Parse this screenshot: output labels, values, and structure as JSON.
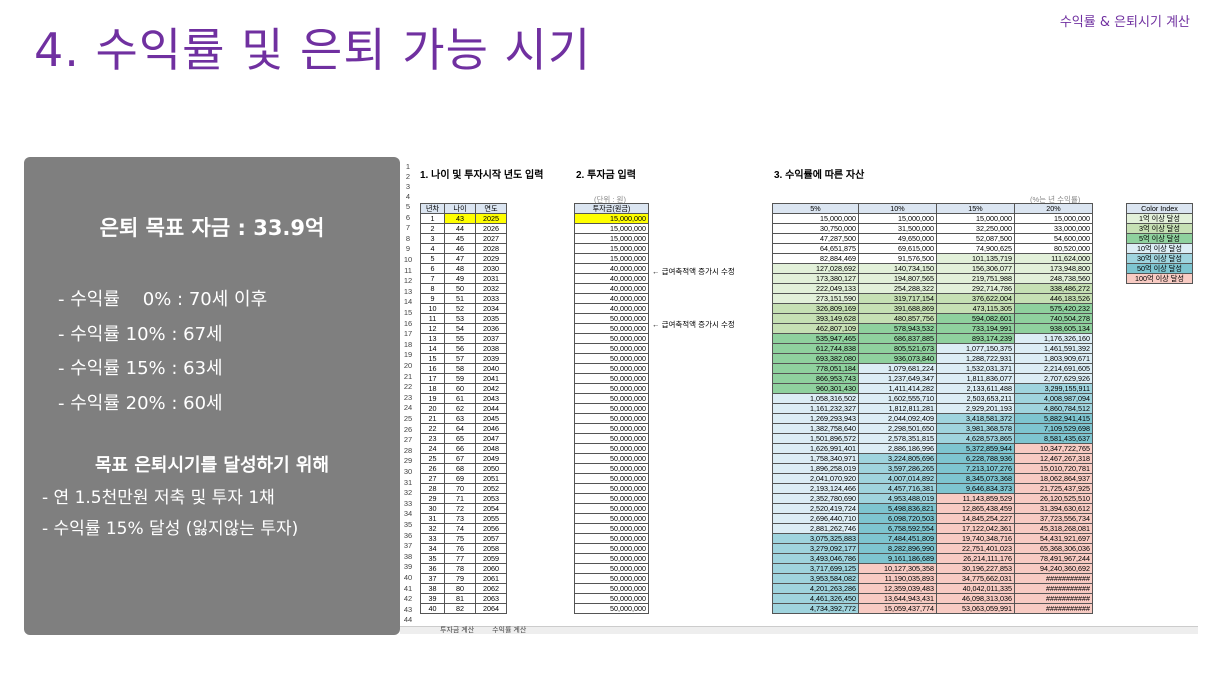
{
  "header": {
    "breadcrumb": "수익률 & 은퇴시기 계산",
    "title": "4. 수익률 및 은퇴 가능 시기"
  },
  "panel": {
    "goal": "은퇴 목표 자금 : 33.9억",
    "rates": [
      "- 수익률    0% : 70세 이후",
      "- 수익률 10% : 67세",
      "- 수익률 15% : 63세",
      "- 수익률 20% : 60세"
    ],
    "subtitle": "목표 은퇴시기를 달성하기 위해",
    "actions": [
      "- 연 1.5천만원 저축 및 투자 1채",
      "- 수익률 15% 달성 (잃지않는 투자)"
    ]
  },
  "sheet": {
    "section1": "1. 나이 및 투자시작 년도 입력",
    "section2": "2. 투자금 입력",
    "section3": "3. 수익률에 따른 자산",
    "unit_note": "(단위 : 원)",
    "rate_note": "(%는 년 수익률)",
    "annotation": "← 급여축적액 증가시 수정",
    "col_headers": [
      "년차",
      "나이",
      "연도"
    ],
    "invest_header": "투자금(원금)",
    "rate_headers": [
      "5%",
      "10%",
      "15%",
      "20%"
    ],
    "legend_title": "Color Index",
    "legend": [
      "1억 이상 달성",
      "3억 이상 달성",
      "5억 이상 달성",
      "10억 이상 달성",
      "30억 이상 달성",
      "50억 이상 달성",
      "100억 이상 달성"
    ],
    "legend_colors": [
      "#e2f0d9",
      "#c6e0b4",
      "#8fd19e",
      "#dcedf5",
      "#9fd4de",
      "#7ec5d0",
      "#f8cbc3"
    ],
    "rows": [
      [
        "1",
        "43",
        "2025",
        "15,000,000",
        "15,000,000",
        "15,000,000",
        "15,000,000",
        "15,000,000"
      ],
      [
        "2",
        "44",
        "2026",
        "15,000,000",
        "30,750,000",
        "31,500,000",
        "32,250,000",
        "33,000,000"
      ],
      [
        "3",
        "45",
        "2027",
        "15,000,000",
        "47,287,500",
        "49,650,000",
        "52,087,500",
        "54,600,000"
      ],
      [
        "4",
        "46",
        "2028",
        "15,000,000",
        "64,651,875",
        "69,615,000",
        "74,900,625",
        "80,520,000"
      ],
      [
        "5",
        "47",
        "2029",
        "15,000,000",
        "82,884,469",
        "91,576,500",
        "101,135,719",
        "111,624,000"
      ],
      [
        "6",
        "48",
        "2030",
        "40,000,000",
        "127,028,692",
        "140,734,150",
        "156,306,077",
        "173,948,800"
      ],
      [
        "7",
        "49",
        "2031",
        "40,000,000",
        "173,380,127",
        "194,807,565",
        "219,751,988",
        "248,738,560"
      ],
      [
        "8",
        "50",
        "2032",
        "40,000,000",
        "222,049,133",
        "254,288,322",
        "292,714,786",
        "338,486,272"
      ],
      [
        "9",
        "51",
        "2033",
        "40,000,000",
        "273,151,590",
        "319,717,154",
        "376,622,004",
        "446,183,526"
      ],
      [
        "10",
        "52",
        "2034",
        "40,000,000",
        "326,809,169",
        "391,688,869",
        "473,115,305",
        "575,420,232"
      ],
      [
        "11",
        "53",
        "2035",
        "50,000,000",
        "393,149,628",
        "480,857,756",
        "594,082,601",
        "740,504,278"
      ],
      [
        "12",
        "54",
        "2036",
        "50,000,000",
        "462,807,109",
        "578,943,532",
        "733,194,991",
        "938,605,134"
      ],
      [
        "13",
        "55",
        "2037",
        "50,000,000",
        "535,947,465",
        "686,837,885",
        "893,174,239",
        "1,176,326,160"
      ],
      [
        "14",
        "56",
        "2038",
        "50,000,000",
        "612,744,838",
        "805,521,673",
        "1,077,150,375",
        "1,461,591,392"
      ],
      [
        "15",
        "57",
        "2039",
        "50,000,000",
        "693,382,080",
        "936,073,840",
        "1,288,722,931",
        "1,803,909,671"
      ],
      [
        "16",
        "58",
        "2040",
        "50,000,000",
        "778,051,184",
        "1,079,681,224",
        "1,532,031,371",
        "2,214,691,605"
      ],
      [
        "17",
        "59",
        "2041",
        "50,000,000",
        "866,953,743",
        "1,237,649,347",
        "1,811,836,077",
        "2,707,629,926"
      ],
      [
        "18",
        "60",
        "2042",
        "50,000,000",
        "960,301,430",
        "1,411,414,282",
        "2,133,611,488",
        "3,299,155,911"
      ],
      [
        "19",
        "61",
        "2043",
        "50,000,000",
        "1,058,316,502",
        "1,602,555,710",
        "2,503,653,211",
        "4,008,987,094"
      ],
      [
        "20",
        "62",
        "2044",
        "50,000,000",
        "1,161,232,327",
        "1,812,811,281",
        "2,929,201,193",
        "4,860,784,512"
      ],
      [
        "21",
        "63",
        "2045",
        "50,000,000",
        "1,269,293,943",
        "2,044,092,409",
        "3,418,581,372",
        "5,882,941,415"
      ],
      [
        "22",
        "64",
        "2046",
        "50,000,000",
        "1,382,758,640",
        "2,298,501,650",
        "3,981,368,578",
        "7,109,529,698"
      ],
      [
        "23",
        "65",
        "2047",
        "50,000,000",
        "1,501,896,572",
        "2,578,351,815",
        "4,628,573,865",
        "8,581,435,637"
      ],
      [
        "24",
        "66",
        "2048",
        "50,000,000",
        "1,626,991,401",
        "2,886,186,996",
        "5,372,859,944",
        "10,347,722,765"
      ],
      [
        "25",
        "67",
        "2049",
        "50,000,000",
        "1,758,340,971",
        "3,224,805,696",
        "6,228,788,936",
        "12,467,267,318"
      ],
      [
        "26",
        "68",
        "2050",
        "50,000,000",
        "1,896,258,019",
        "3,597,286,265",
        "7,213,107,276",
        "15,010,720,781"
      ],
      [
        "27",
        "69",
        "2051",
        "50,000,000",
        "2,041,070,920",
        "4,007,014,892",
        "8,345,073,368",
        "18,062,864,937"
      ],
      [
        "28",
        "70",
        "2052",
        "50,000,000",
        "2,193,124,466",
        "4,457,716,381",
        "9,646,834,373",
        "21,725,437,925"
      ],
      [
        "29",
        "71",
        "2053",
        "50,000,000",
        "2,352,780,690",
        "4,953,488,019",
        "11,143,859,529",
        "26,120,525,510"
      ],
      [
        "30",
        "72",
        "2054",
        "50,000,000",
        "2,520,419,724",
        "5,498,836,821",
        "12,865,438,459",
        "31,394,630,612"
      ],
      [
        "31",
        "73",
        "2055",
        "50,000,000",
        "2,696,440,710",
        "6,098,720,503",
        "14,845,254,227",
        "37,723,556,734"
      ],
      [
        "32",
        "74",
        "2056",
        "50,000,000",
        "2,881,262,746",
        "6,758,592,554",
        "17,122,042,361",
        "45,318,268,081"
      ],
      [
        "33",
        "75",
        "2057",
        "50,000,000",
        "3,075,325,883",
        "7,484,451,809",
        "19,740,348,716",
        "54,431,921,697"
      ],
      [
        "34",
        "76",
        "2058",
        "50,000,000",
        "3,279,092,177",
        "8,282,896,990",
        "22,751,401,023",
        "65,368,306,036"
      ],
      [
        "35",
        "77",
        "2059",
        "50,000,000",
        "3,493,046,786",
        "9,161,186,689",
        "26,214,111,176",
        "78,491,967,244"
      ],
      [
        "36",
        "78",
        "2060",
        "50,000,000",
        "3,717,699,125",
        "10,127,305,358",
        "30,196,227,853",
        "94,240,360,692"
      ],
      [
        "37",
        "79",
        "2061",
        "50,000,000",
        "3,953,584,082",
        "11,190,035,893",
        "34,775,662,031",
        "###########"
      ],
      [
        "38",
        "80",
        "2062",
        "50,000,000",
        "4,201,263,286",
        "12,359,039,483",
        "40,042,011,335",
        "###########"
      ],
      [
        "39",
        "81",
        "2063",
        "50,000,000",
        "4,461,326,450",
        "13,644,943,431",
        "46,098,313,036",
        "###########"
      ],
      [
        "40",
        "82",
        "2064",
        "50,000,000",
        "4,734,392,772",
        "15,059,437,774",
        "53,063,059,991",
        "###########"
      ]
    ],
    "tabs": [
      "투자금 계산",
      "수익률 계산"
    ]
  }
}
